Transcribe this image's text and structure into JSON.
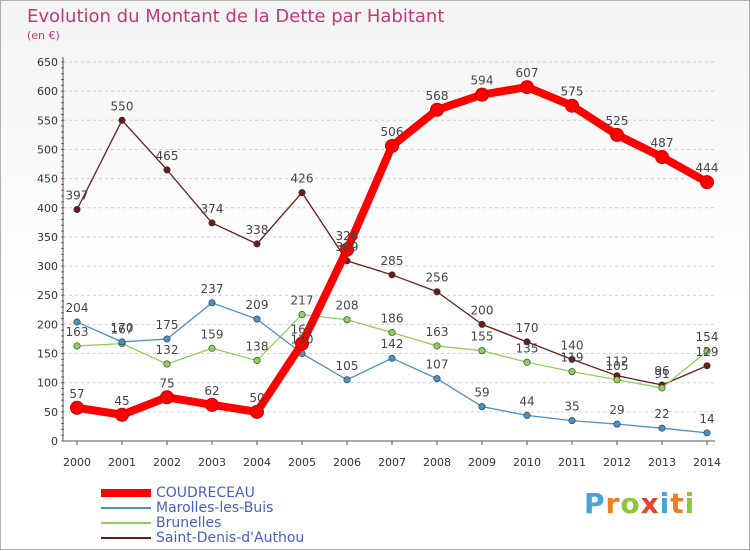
{
  "title": "Evolution du Montant de la Dette par Habitant",
  "unit_label": "(en €)",
  "logo_text": "Proxiti",
  "chart_data": {
    "type": "line",
    "title": "Evolution du Montant de la Dette par Habitant",
    "ylabel": "(en €)",
    "xlabel": "",
    "x": [
      "2000",
      "2001",
      "2002",
      "2003",
      "2004",
      "2005",
      "2006",
      "2007",
      "2008",
      "2009",
      "2010",
      "2011",
      "2012",
      "2013",
      "2014"
    ],
    "ylim": [
      0,
      650
    ],
    "yticks": [
      0,
      50,
      100,
      150,
      200,
      250,
      300,
      350,
      400,
      450,
      500,
      550,
      600,
      650
    ],
    "grid": true,
    "legend_position": "bottom-left",
    "series": [
      {
        "name": "COUDRECEAU",
        "color": "#ff0000",
        "values": [
          57,
          45,
          75,
          62,
          50,
          167,
          328,
          506,
          568,
          594,
          607,
          575,
          525,
          487,
          444
        ]
      },
      {
        "name": "Marolles-les-Buis",
        "color": "#4a90c8",
        "values": [
          204,
          170,
          175,
          237,
          209,
          150,
          105,
          142,
          107,
          59,
          44,
          35,
          29,
          22,
          14
        ]
      },
      {
        "name": "Brunelles",
        "color": "#8fd05a",
        "values": [
          163,
          167,
          132,
          159,
          138,
          217,
          208,
          186,
          163,
          155,
          135,
          119,
          105,
          91,
          154
        ]
      },
      {
        "name": "Saint-Denis-d'Authou",
        "color": "#6b1a1a",
        "values": [
          397,
          550,
          465,
          374,
          338,
          426,
          309,
          285,
          256,
          200,
          170,
          140,
          112,
          96,
          129
        ]
      }
    ]
  }
}
